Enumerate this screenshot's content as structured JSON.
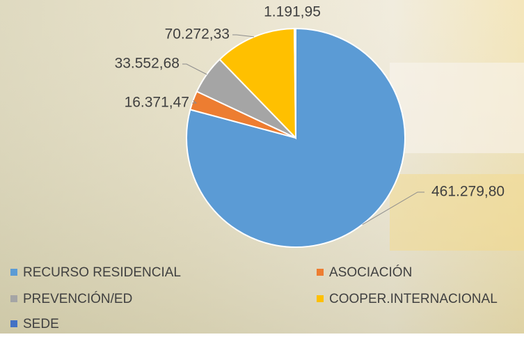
{
  "chart_data": {
    "type": "pie",
    "categories": [
      "RECURSO RESIDENCIAL",
      "ASOCIACIÓN",
      "PREVENCIÓN/ED",
      "COOPER.INTERNACIONAL",
      "SEDE"
    ],
    "values": [
      461279.8,
      16371.47,
      33552.68,
      70272.33,
      1191.95
    ],
    "value_labels": [
      "461.279,80",
      "16.371,47",
      "33.552,68",
      "70.272,33",
      "1.191,95"
    ],
    "colors": [
      "#5b9bd5",
      "#ed7d31",
      "#a5a5a5",
      "#ffc000",
      "#4472c4"
    ],
    "legend": "bottom"
  }
}
